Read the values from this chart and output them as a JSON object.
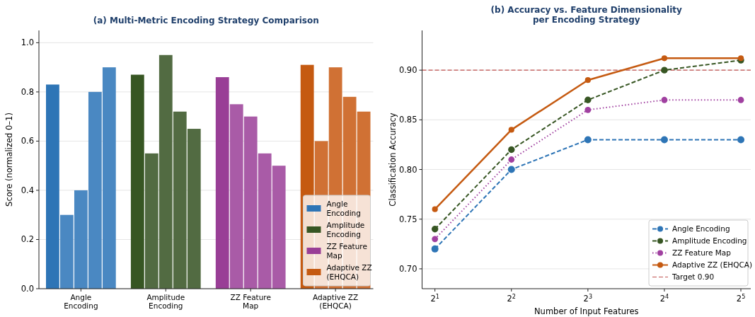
{
  "chart_data": [
    {
      "type": "bar",
      "title": "(a) Multi-Metric Encoding Strategy Comparison",
      "ylabel": "Score (normalized 0–1)",
      "categories": [
        null,
        null,
        "Angle Encoding",
        null,
        null,
        null,
        null,
        null,
        "Amplitude Encoding",
        null,
        null,
        null,
        null,
        null,
        "ZZ Feature Map",
        null,
        null,
        null,
        null,
        null,
        "Adaptive ZZ (EHQCA)",
        null,
        null
      ],
      "series": [
        {
          "name": "Angle Encoding",
          "color": "#2e75b6",
          "colors": [
            "#2e75b6",
            "#4a88c2",
            "#4a88c2",
            "#4a88c2",
            "#4a88c2",
            null,
            null,
            null,
            null,
            null,
            null,
            null,
            null,
            null,
            null,
            null,
            null,
            null,
            null,
            null,
            null,
            null,
            null
          ],
          "values": [
            0.83,
            0.3,
            0.4,
            0.8,
            0.9,
            null,
            null,
            null,
            null,
            null,
            null,
            null,
            null,
            null,
            null,
            null,
            null,
            null,
            null,
            null,
            null,
            null,
            null
          ]
        },
        {
          "name": "Amplitude Encoding",
          "color": "#375623",
          "colors": [
            null,
            null,
            null,
            null,
            null,
            null,
            "#375623",
            "#526b42",
            "#526b42",
            "#526b42",
            "#526b42",
            null,
            null,
            null,
            null,
            null,
            null,
            null,
            null,
            null,
            null,
            null,
            null
          ],
          "values": [
            null,
            null,
            null,
            null,
            null,
            null,
            0.87,
            0.55,
            0.95,
            0.72,
            0.65,
            null,
            null,
            null,
            null,
            null,
            null,
            null,
            null,
            null,
            null,
            null,
            null
          ]
        },
        {
          "name": "ZZ Feature Map",
          "color": "#993e96",
          "colors": [
            null,
            null,
            null,
            null,
            null,
            null,
            null,
            null,
            null,
            null,
            null,
            null,
            "#993e96",
            "#a95ba7",
            "#a95ba7",
            "#a95ba7",
            "#a95ba7",
            null,
            null,
            null,
            null,
            null,
            null
          ],
          "values": [
            null,
            null,
            null,
            null,
            null,
            null,
            null,
            null,
            null,
            null,
            null,
            null,
            0.86,
            0.75,
            0.7,
            0.55,
            0.5,
            null,
            null,
            null,
            null,
            null,
            null
          ]
        },
        {
          "name": "Adaptive ZZ (EHQCA)",
          "color": "#c55a11",
          "colors": [
            null,
            null,
            null,
            null,
            null,
            null,
            null,
            null,
            null,
            null,
            null,
            null,
            null,
            null,
            null,
            null,
            null,
            null,
            "#c55a11",
            "#d07134",
            "#d07134",
            "#d07134",
            "#d07134"
          ],
          "values": [
            null,
            null,
            null,
            null,
            null,
            null,
            null,
            null,
            null,
            null,
            null,
            null,
            null,
            null,
            null,
            null,
            null,
            null,
            0.91,
            0.6,
            0.9,
            0.78,
            0.72
          ]
        }
      ],
      "ylim": [
        0,
        1.05
      ],
      "yticks": [
        {
          "value": 0,
          "label": "0.0"
        },
        {
          "value": 0.2,
          "label": "0.2"
        },
        {
          "value": 0.4,
          "label": "0.4"
        },
        {
          "value": 0.6,
          "label": "0.6"
        },
        {
          "value": 0.8,
          "label": "0.8"
        },
        {
          "value": 1,
          "label": "1.0"
        }
      ],
      "grid": "y",
      "legend": "bottom right"
    },
    {
      "type": "line",
      "title": "(b) Accuracy vs. Feature Dimensionality\nper Encoding Strategy",
      "xlabel": "Number of Input Features",
      "ylabel": "Classification Accuracy",
      "x": [
        2,
        4,
        8,
        16,
        32
      ],
      "log": "x",
      "series": [
        {
          "name": "Angle Encoding",
          "color": "#2e75b6",
          "line_style": "dashed",
          "values": [
            0.72,
            0.8,
            0.83,
            0.83,
            0.83
          ]
        },
        {
          "name": "Amplitude Encoding",
          "color": "#375623",
          "line_style": "dashed",
          "values": [
            0.74,
            0.82,
            0.87,
            0.9,
            0.91
          ]
        },
        {
          "name": "ZZ Feature Map",
          "color": "#a040a0",
          "line_style": "dotted",
          "values": [
            0.73,
            0.81,
            0.86,
            0.87,
            0.87
          ]
        },
        {
          "name": "Adaptive ZZ (EHQCA)",
          "color": "#c55a11",
          "line_style": "solid",
          "values": [
            0.76,
            0.84,
            0.89,
            0.912,
            0.912
          ]
        }
      ],
      "marker": "circle",
      "ref_lines": [
        {
          "axis": "y",
          "value": 0.9,
          "label": "Target 0.90",
          "color": "#c0504d",
          "line_style": "dashed"
        }
      ],
      "xlim": [
        1.78,
        35
      ],
      "xticks": [
        {
          "value": 2,
          "label": "2$^{1}$"
        },
        {
          "value": 4,
          "label": "2$^{2}$"
        },
        {
          "value": 8,
          "label": "2$^{3}$"
        },
        {
          "value": 16,
          "label": "2$^{4}$"
        },
        {
          "value": 32,
          "label": "2$^{5}$"
        }
      ],
      "ylim": [
        0.68,
        0.94
      ],
      "yticks": [
        {
          "value": 0.7,
          "label": "0.70"
        },
        {
          "value": 0.75,
          "label": "0.75"
        },
        {
          "value": 0.8,
          "label": "0.80"
        },
        {
          "value": 0.85,
          "label": "0.85"
        },
        {
          "value": 0.9,
          "label": "0.90"
        }
      ],
      "grid": "y",
      "legend": "bottom right"
    }
  ]
}
